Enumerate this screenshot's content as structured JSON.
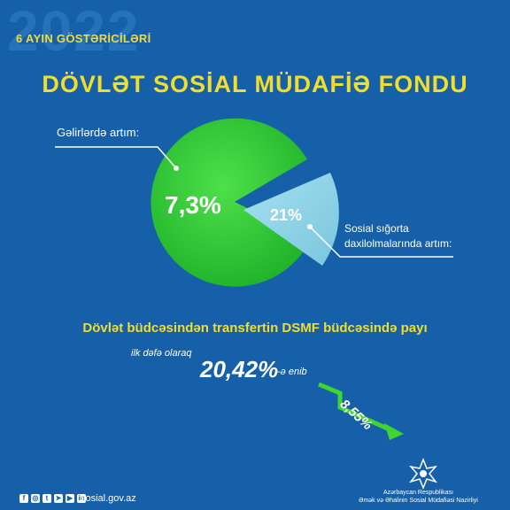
{
  "header": {
    "year": "2022",
    "subtitle": "6 AYIN GÖSTƏRİCİLƏRİ",
    "title": "DÖVLƏT SOSİAL MÜDAFİƏ FONDU"
  },
  "pie": {
    "income_label": "Gəlirlərdə artım:",
    "income_value": "7,3%",
    "insurance_label_line1": "Sosial sığorta",
    "insurance_label_line2": "daxilolmalarında artım:",
    "insurance_value": "21%"
  },
  "budget": {
    "title": "Dövlət büdcəsindən transfertin DSMF büdcəsində payı",
    "first_time": "ilk dəfə olaraq",
    "big_value": "20,42%",
    "big_suffix": "-ə enib",
    "small_value": "8,55%"
  },
  "footer": {
    "social_icons": [
      "facebook-icon",
      "instagram-icon",
      "twitter-icon",
      "telegram-icon",
      "youtube-icon",
      "linkedin-icon"
    ],
    "website": "sosial.gov.az",
    "ministry_line1": "Azərbaycan Respublikası",
    "ministry_line2": "Əmək və Əhalinin Sosial Müdafiəsi Nazirliyi"
  },
  "colors": {
    "background": "#1560a8",
    "accent_yellow": "#f3dd2c",
    "pie_green": "#2ec22e",
    "slice_lightblue": "#8fd3e6",
    "arrow_green": "#3ed62f"
  }
}
